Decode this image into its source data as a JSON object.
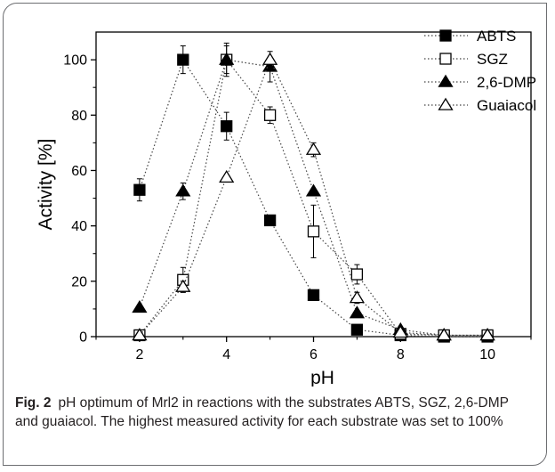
{
  "caption": {
    "label": "Fig. 2",
    "text": "pH optimum of Mrl2 in reactions with the substrates ABTS, SGZ, 2,6-DMP and guaiacol. The highest measured activity for each substrate was set to 100%"
  },
  "chart_data": {
    "type": "scatter",
    "title": "",
    "xlabel": "pH",
    "ylabel": "Activity [%]",
    "xlim": [
      1,
      11
    ],
    "ylim": [
      0,
      110
    ],
    "xticks": [
      2,
      4,
      6,
      8,
      10
    ],
    "yticks": [
      0,
      20,
      40,
      60,
      80,
      100
    ],
    "grid": false,
    "connector": "dotted",
    "legend": "top-right",
    "series": [
      {
        "name": "ABTS",
        "marker": "square",
        "filled": true,
        "x": [
          2,
          3,
          4,
          5,
          6,
          7,
          8,
          9,
          10
        ],
        "y": [
          53,
          100,
          76,
          42,
          15,
          2.5,
          0.5,
          0,
          0
        ],
        "err": [
          4,
          5,
          5,
          1,
          0,
          0,
          0,
          0,
          0
        ]
      },
      {
        "name": "SGZ",
        "marker": "square",
        "filled": false,
        "x": [
          2,
          3,
          4,
          5,
          6,
          7,
          8,
          9,
          10
        ],
        "y": [
          0.5,
          20.5,
          100,
          80,
          38,
          22.5,
          1,
          0.5,
          0.5
        ],
        "err": [
          0,
          4.5,
          6,
          3,
          9.5,
          3.5,
          0,
          0,
          0
        ]
      },
      {
        "name": "2,6-DMP",
        "marker": "triangle",
        "filled": true,
        "x": [
          2,
          3,
          4,
          5,
          6,
          7,
          8,
          9,
          10
        ],
        "y": [
          10.5,
          52.5,
          100,
          97.5,
          52.5,
          8.5,
          2.5,
          0.5,
          0.5
        ],
        "err": [
          0,
          3,
          5,
          5.5,
          0,
          0,
          0,
          0,
          0
        ]
      },
      {
        "name": "Guaiacol",
        "marker": "triangle",
        "filled": false,
        "x": [
          2,
          3,
          4,
          5,
          6,
          7,
          8,
          9,
          10
        ],
        "y": [
          0.5,
          18,
          57.5,
          100,
          67.5,
          14,
          1.5,
          0.5,
          0.5
        ],
        "err": [
          0,
          2,
          0,
          0,
          2.5,
          2,
          0,
          0,
          0
        ]
      }
    ]
  }
}
